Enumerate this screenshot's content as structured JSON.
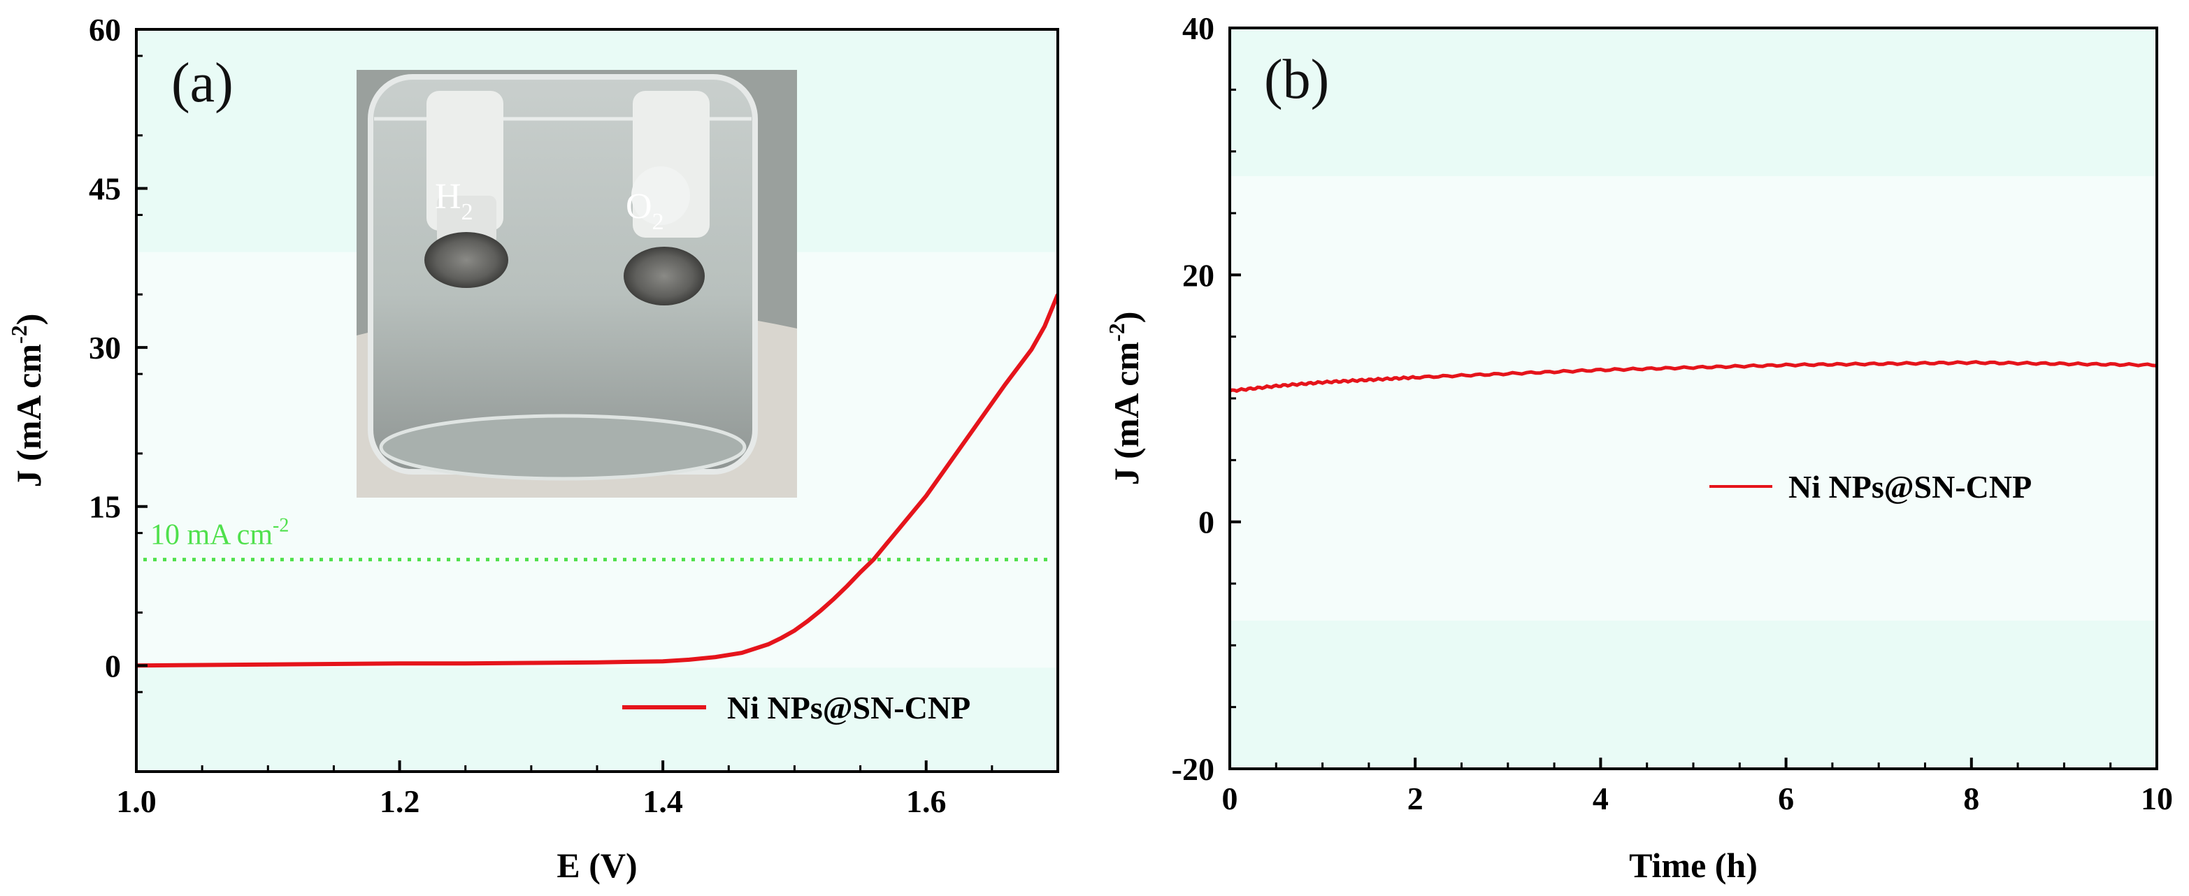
{
  "colors": {
    "curve": "#e5141b",
    "reference": "#4fe04c",
    "plot_bg": "#e9fbf6",
    "plot_band": "#f7fdfb",
    "axis": "#000000"
  },
  "chart_data": [
    {
      "panel_label": "(a)",
      "type": "line",
      "title": "",
      "xlabel": "E (V)",
      "ylabel_main": "J (mA cm",
      "ylabel_sup": "-2",
      "ylabel_end": ")",
      "xlim": [
        1.0,
        1.7
      ],
      "ylim": [
        -10,
        60
      ],
      "xticks": [
        1.0,
        1.2,
        1.4,
        1.6
      ],
      "xtick_labels": [
        "1.0",
        "1.2",
        "1.4",
        "1.6"
      ],
      "yticks": [
        0,
        15,
        30,
        45,
        60
      ],
      "ytick_labels": [
        "0",
        "15",
        "30",
        "45",
        "60"
      ],
      "grid": false,
      "legend_position": "bottom-right",
      "series": [
        {
          "name": "Ni NPs@SN-CNP",
          "x": [
            1.0,
            1.05,
            1.1,
            1.15,
            1.2,
            1.25,
            1.3,
            1.35,
            1.4,
            1.42,
            1.44,
            1.46,
            1.48,
            1.49,
            1.5,
            1.51,
            1.52,
            1.53,
            1.54,
            1.55,
            1.56,
            1.57,
            1.58,
            1.6,
            1.62,
            1.64,
            1.66,
            1.68,
            1.69,
            1.7
          ],
          "y": [
            0.0,
            0.05,
            0.1,
            0.15,
            0.2,
            0.2,
            0.25,
            0.3,
            0.4,
            0.55,
            0.8,
            1.2,
            2.0,
            2.6,
            3.3,
            4.2,
            5.2,
            6.3,
            7.5,
            8.8,
            10.0,
            11.5,
            13.0,
            16.0,
            19.5,
            23.0,
            26.5,
            29.8,
            32.0,
            35.0
          ]
        }
      ],
      "reference_line": {
        "y": 10,
        "label_main": "10 mA cm",
        "label_sup": "-2",
        "style": "dotted"
      },
      "inset_photo": {
        "description_free": true,
        "labels": [
          {
            "main": "H",
            "sub": "2"
          },
          {
            "main": "O",
            "sub": "2"
          }
        ]
      }
    },
    {
      "panel_label": "(b)",
      "type": "line",
      "title": "",
      "xlabel": "Time (h)",
      "ylabel_main": "J (mA cm",
      "ylabel_sup": "-2",
      "ylabel_end": ")",
      "xlim": [
        0,
        10
      ],
      "ylim": [
        -20,
        40
      ],
      "xticks": [
        0,
        2,
        4,
        6,
        8,
        10
      ],
      "xtick_labels": [
        "0",
        "2",
        "4",
        "6",
        "8",
        "10"
      ],
      "yticks": [
        -20,
        0,
        20,
        40
      ],
      "ytick_labels": [
        "-20",
        "0",
        "20",
        "40"
      ],
      "grid": false,
      "legend_position": "center-right",
      "series": [
        {
          "name": "Ni NPs@SN-CNP",
          "x": [
            0,
            0.5,
            1,
            1.5,
            2,
            3,
            4,
            5,
            6,
            7,
            8,
            9,
            10
          ],
          "y": [
            10.6,
            11.0,
            11.3,
            11.5,
            11.7,
            12.0,
            12.3,
            12.5,
            12.7,
            12.8,
            12.9,
            12.8,
            12.7
          ]
        }
      ]
    }
  ]
}
